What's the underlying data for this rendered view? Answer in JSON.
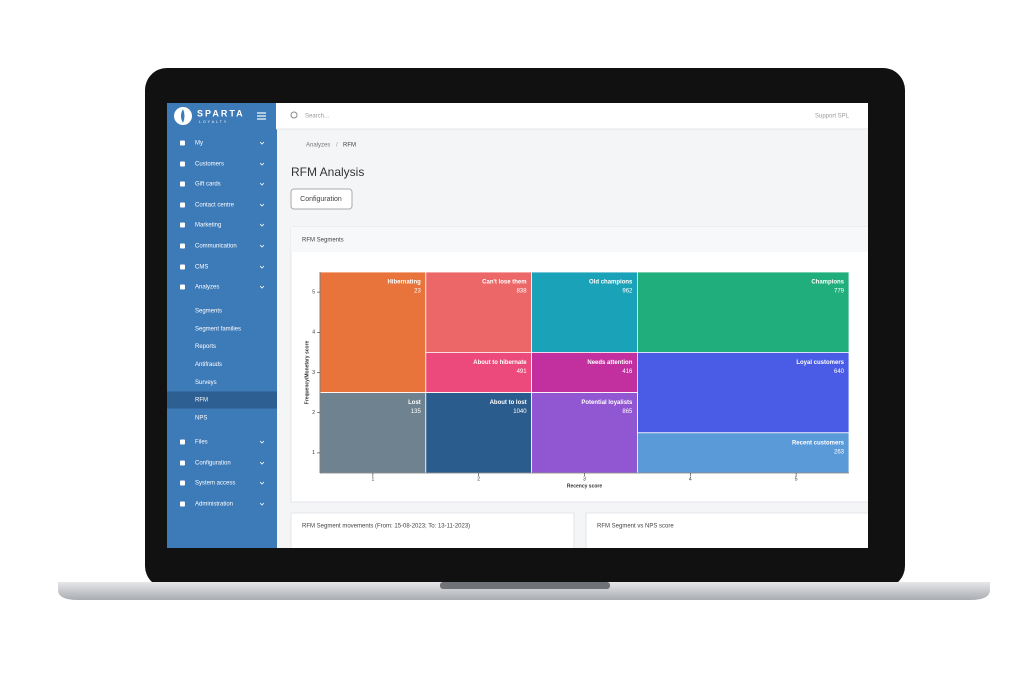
{
  "sidebar": {
    "logo": "SPARTA",
    "logo_sub": "LOYALTY",
    "menu_top": [
      "My",
      "Customers",
      "Gift cards",
      "Contact centre",
      "Marketing",
      "Communication",
      "CMS",
      "Analyzes"
    ],
    "submenu": [
      "Segments",
      "Segment families",
      "Reports",
      "Antifrauds",
      "Surveys",
      "RFM",
      "NPS"
    ],
    "active": 5,
    "menu_bottom": [
      "Files",
      "Configuration",
      "System access",
      "Administration"
    ]
  },
  "topbar": {
    "search": "Search...",
    "user": "Support SPL"
  },
  "breadcrumb": {
    "items": [
      "Analyzes",
      "RFM"
    ],
    "separator": "/"
  },
  "page_title": "RFM Analysis",
  "button": "Configuration",
  "panels": {
    "segments": "RFM Segments",
    "movements": "RFM Segment movements (From: 15-08-2023; To: 13-11-2023)",
    "nps": "RFM Segment vs NPS score"
  },
  "rfm_chart": {
    "type": "grid-segments",
    "x_label": "Recency score",
    "y_label": "Frequency/Monetary score",
    "xlim": [
      0.5,
      5.5
    ],
    "ylim": [
      0.5,
      5.5
    ],
    "xticks": [
      1,
      2,
      3,
      4,
      5
    ],
    "yticks": [
      1,
      2,
      3,
      4,
      5
    ],
    "segments": [
      {
        "name": "Hibernating",
        "value": 23,
        "color": "#e8743b",
        "x": [
          0.5,
          1.5
        ],
        "y": [
          2.5,
          5.5
        ]
      },
      {
        "name": "Can't lose them",
        "value": 838,
        "color": "#ec6868",
        "x": [
          1.5,
          2.5
        ],
        "y": [
          3.5,
          5.5
        ]
      },
      {
        "name": "Old champions",
        "value": 962,
        "color": "#1aa3b8",
        "x": [
          2.5,
          3.5
        ],
        "y": [
          3.5,
          5.5
        ]
      },
      {
        "name": "Champions",
        "value": 779,
        "color": "#1fae7c",
        "x": [
          3.5,
          5.5
        ],
        "y": [
          3.5,
          5.5
        ]
      },
      {
        "name": "About to hibernate",
        "value": 491,
        "color": "#ec4a7c",
        "x": [
          1.5,
          2.5
        ],
        "y": [
          2.5,
          3.5
        ]
      },
      {
        "name": "Needs attention",
        "value": 416,
        "color": "#c22f9e",
        "x": [
          2.5,
          3.5
        ],
        "y": [
          2.5,
          3.5
        ]
      },
      {
        "name": "Loyal customers",
        "value": 640,
        "color": "#4a5ce6",
        "x": [
          3.5,
          5.5
        ],
        "y": [
          1.5,
          3.5
        ]
      },
      {
        "name": "Lost",
        "value": 135,
        "color": "#6e838f",
        "x": [
          0.5,
          1.5
        ],
        "y": [
          0.5,
          2.5
        ]
      },
      {
        "name": "About to lost",
        "value": 1040,
        "color": "#2a5c8e",
        "x": [
          1.5,
          2.5
        ],
        "y": [
          0.5,
          2.5
        ]
      },
      {
        "name": "Potential loyalists",
        "value": 865,
        "color": "#9156d1",
        "x": [
          2.5,
          3.5
        ],
        "y": [
          0.5,
          2.5
        ]
      },
      {
        "name": "Recent customers",
        "value": 263,
        "color": "#5b9ad9",
        "x": [
          3.5,
          5.5
        ],
        "y": [
          0.5,
          1.5
        ]
      }
    ]
  }
}
